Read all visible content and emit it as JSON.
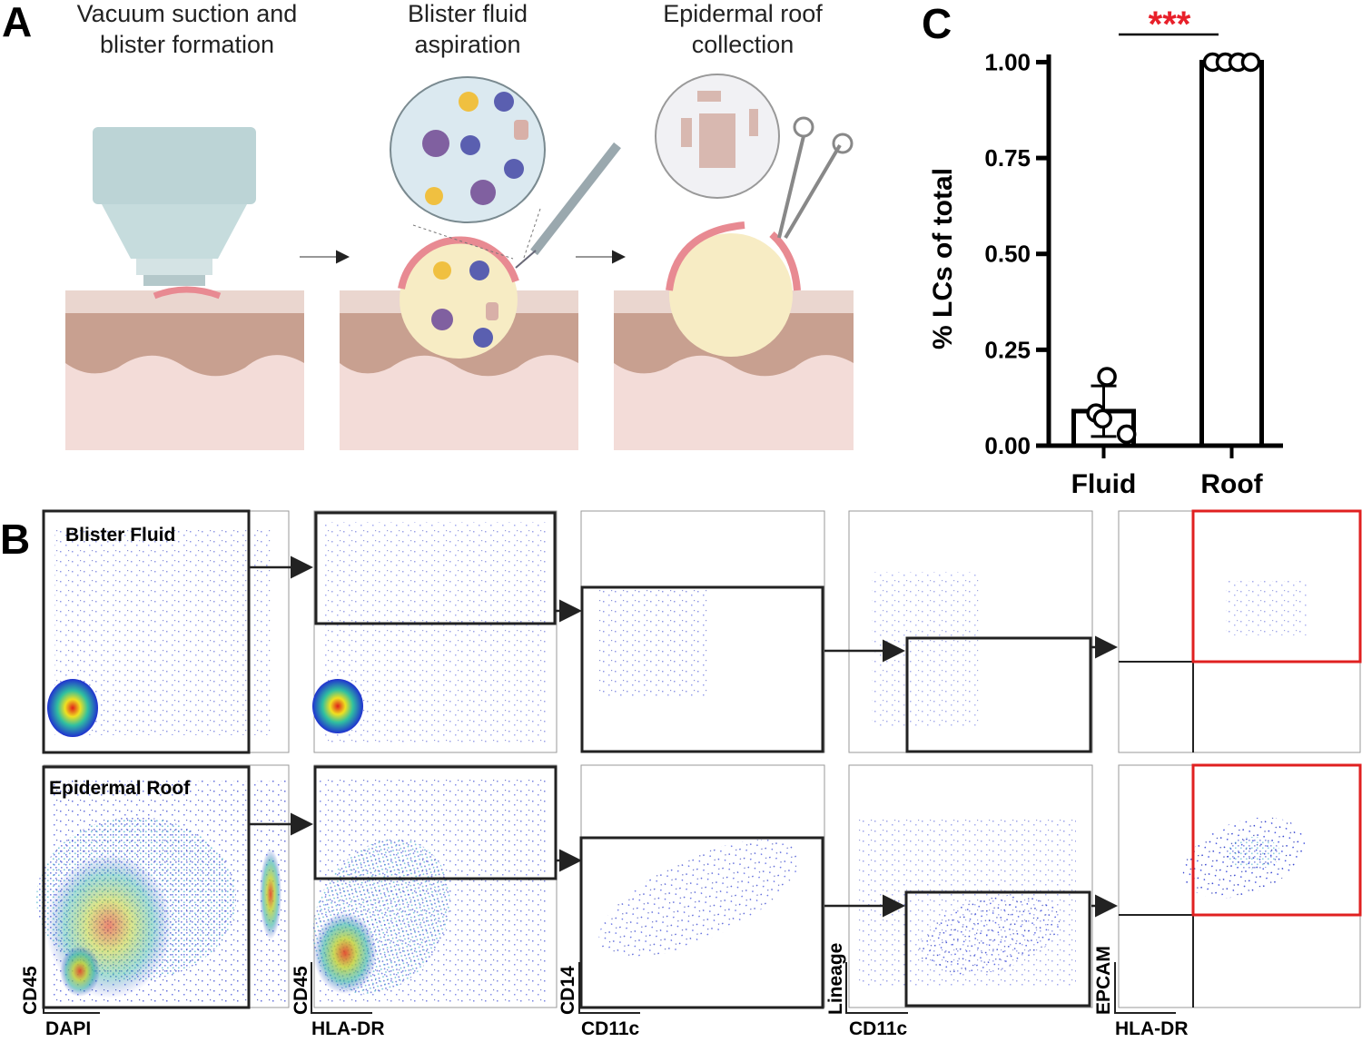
{
  "panel_a": {
    "label": "A",
    "steps": [
      {
        "title_lines": [
          "Vacuum suction and",
          "blister formation"
        ]
      },
      {
        "title_lines": [
          "Blister fluid",
          "aspiration"
        ]
      },
      {
        "title_lines": [
          "Epidermal roof",
          "collection"
        ]
      }
    ]
  },
  "panel_b": {
    "label": "B",
    "rows": [
      {
        "title": "Blister Fluid"
      },
      {
        "title": "Epidermal Roof"
      }
    ],
    "plots": [
      {
        "y_label": "CD45",
        "x_label": "DAPI"
      },
      {
        "y_label": "CD45",
        "x_label": "HLA-DR"
      },
      {
        "y_label": "CD14",
        "x_label": "CD11c"
      },
      {
        "y_label": "Lineage",
        "x_label": "CD11c"
      },
      {
        "y_label": "EPCAM",
        "x_label": "HLA-DR"
      }
    ]
  },
  "panel_c": {
    "label": "C"
  },
  "chart_data": {
    "type": "bar",
    "y_label": "% LCs of total",
    "annotation": "***",
    "categories": [
      "Fluid",
      "Roof"
    ],
    "values": [
      0.09,
      1.0
    ],
    "errors": [
      0.066,
      0
    ],
    "points": [
      [
        0.18,
        0.085,
        0.07,
        0.03
      ],
      [
        1.0,
        1.0,
        1.0,
        1.0
      ]
    ],
    "color": "#ffffff",
    "annotation_color": "#e8202a",
    "ylim": [
      0,
      1.02
    ],
    "yticks": [
      {
        "value": 0,
        "label": "0.00"
      },
      {
        "value": 0.25,
        "label": "0.25"
      },
      {
        "value": 0.5,
        "label": "0.50"
      },
      {
        "value": 0.75,
        "label": "0.75"
      },
      {
        "value": 1,
        "label": "1.00"
      }
    ]
  }
}
